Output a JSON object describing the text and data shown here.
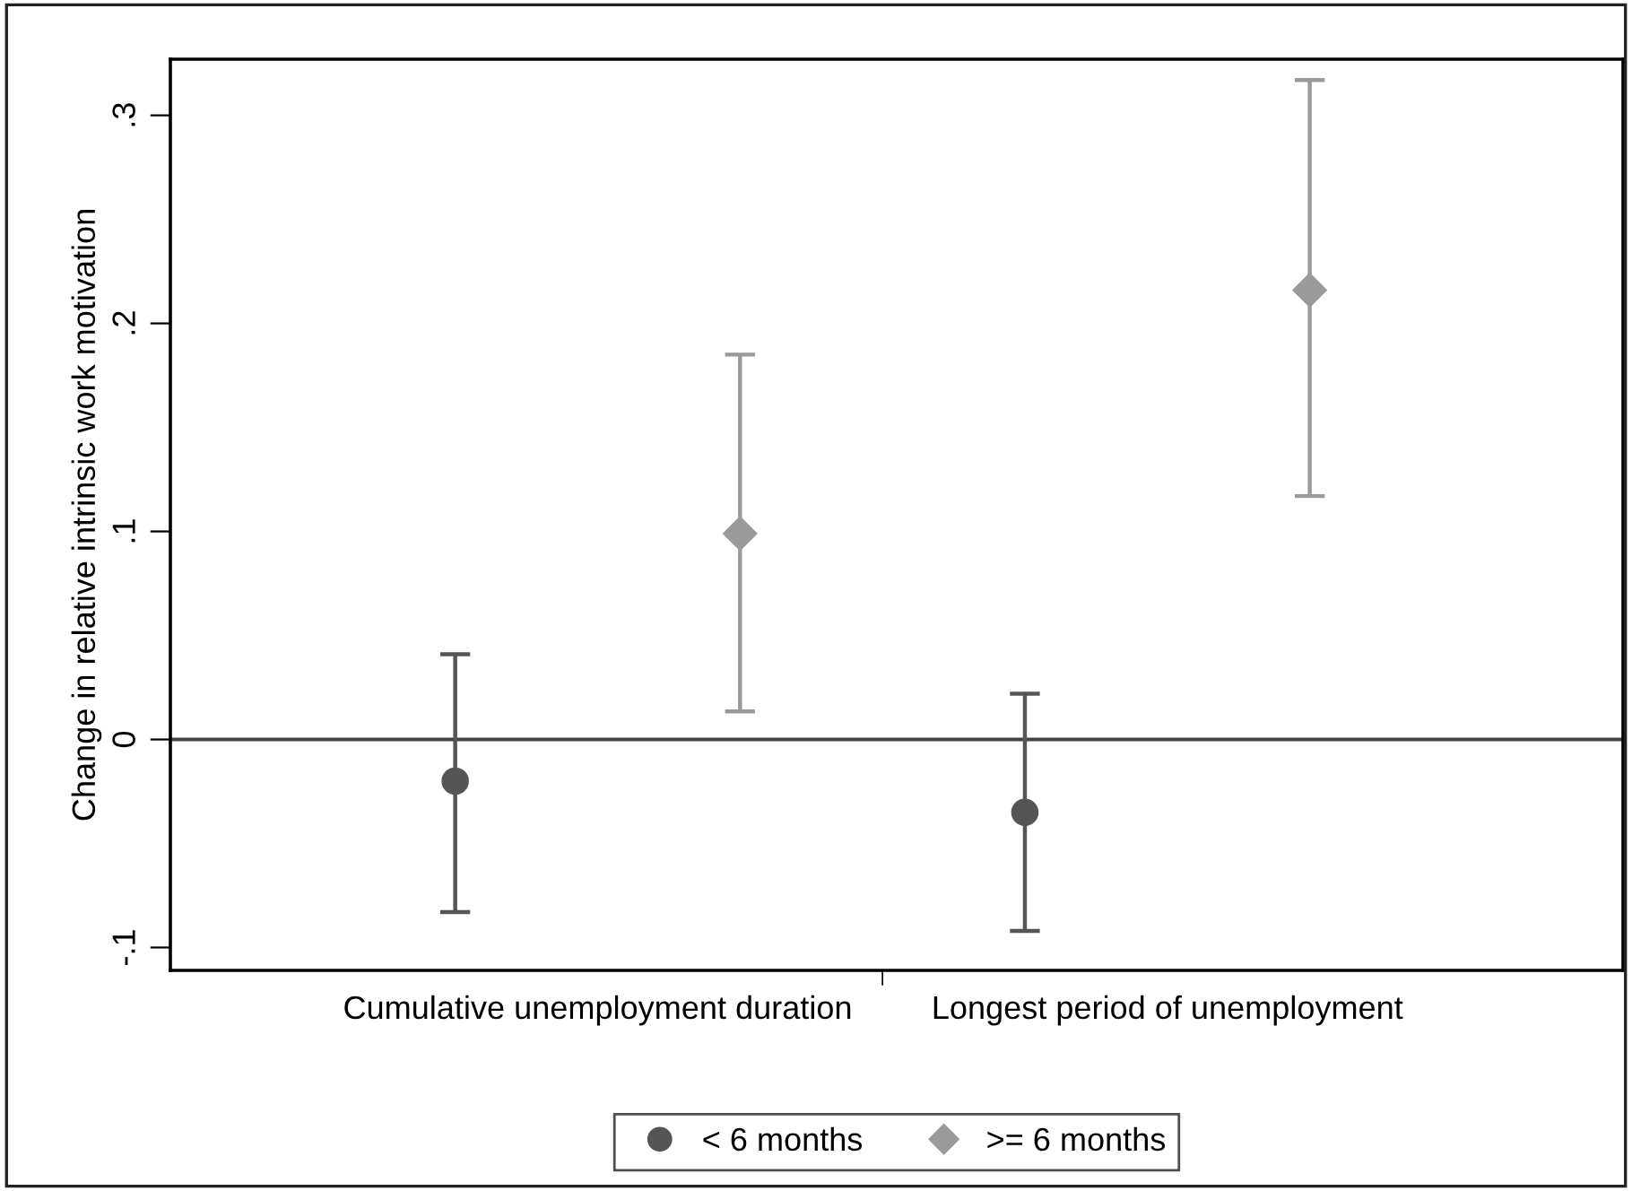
{
  "chart_data": {
    "type": "scatter",
    "ylabel": "Change in relative intrinsic work motivation",
    "categories": [
      "Cumulative unemployment duration",
      "Longest period of unemployment"
    ],
    "series": [
      {
        "name": "< 6 months",
        "color": "#555555",
        "marker": "circle",
        "values": [
          -0.02,
          -0.035
        ],
        "errors": [
          [
            -0.083,
            0.041
          ],
          [
            -0.092,
            0.022
          ]
        ]
      },
      {
        "name": ">= 6 months",
        "color": "#9a9a9a",
        "marker": "diamond",
        "values": [
          0.099,
          0.216
        ],
        "errors": [
          [
            0.0135,
            0.185
          ],
          [
            0.117,
            0.317
          ]
        ]
      }
    ],
    "ylim": [
      -0.111,
      0.327
    ],
    "yticks": [
      {
        "value": -0.1,
        "label": "-.1"
      },
      {
        "value": 0,
        "label": "0"
      },
      {
        "value": 0.1,
        "label": ".1"
      },
      {
        "value": 0.2,
        "label": ".2"
      },
      {
        "value": 0.3,
        "label": ".3"
      }
    ],
    "ref_lines": [
      {
        "axis": "y",
        "value": 0,
        "color": "#444444"
      }
    ],
    "grid": false,
    "legend": "bottom"
  }
}
